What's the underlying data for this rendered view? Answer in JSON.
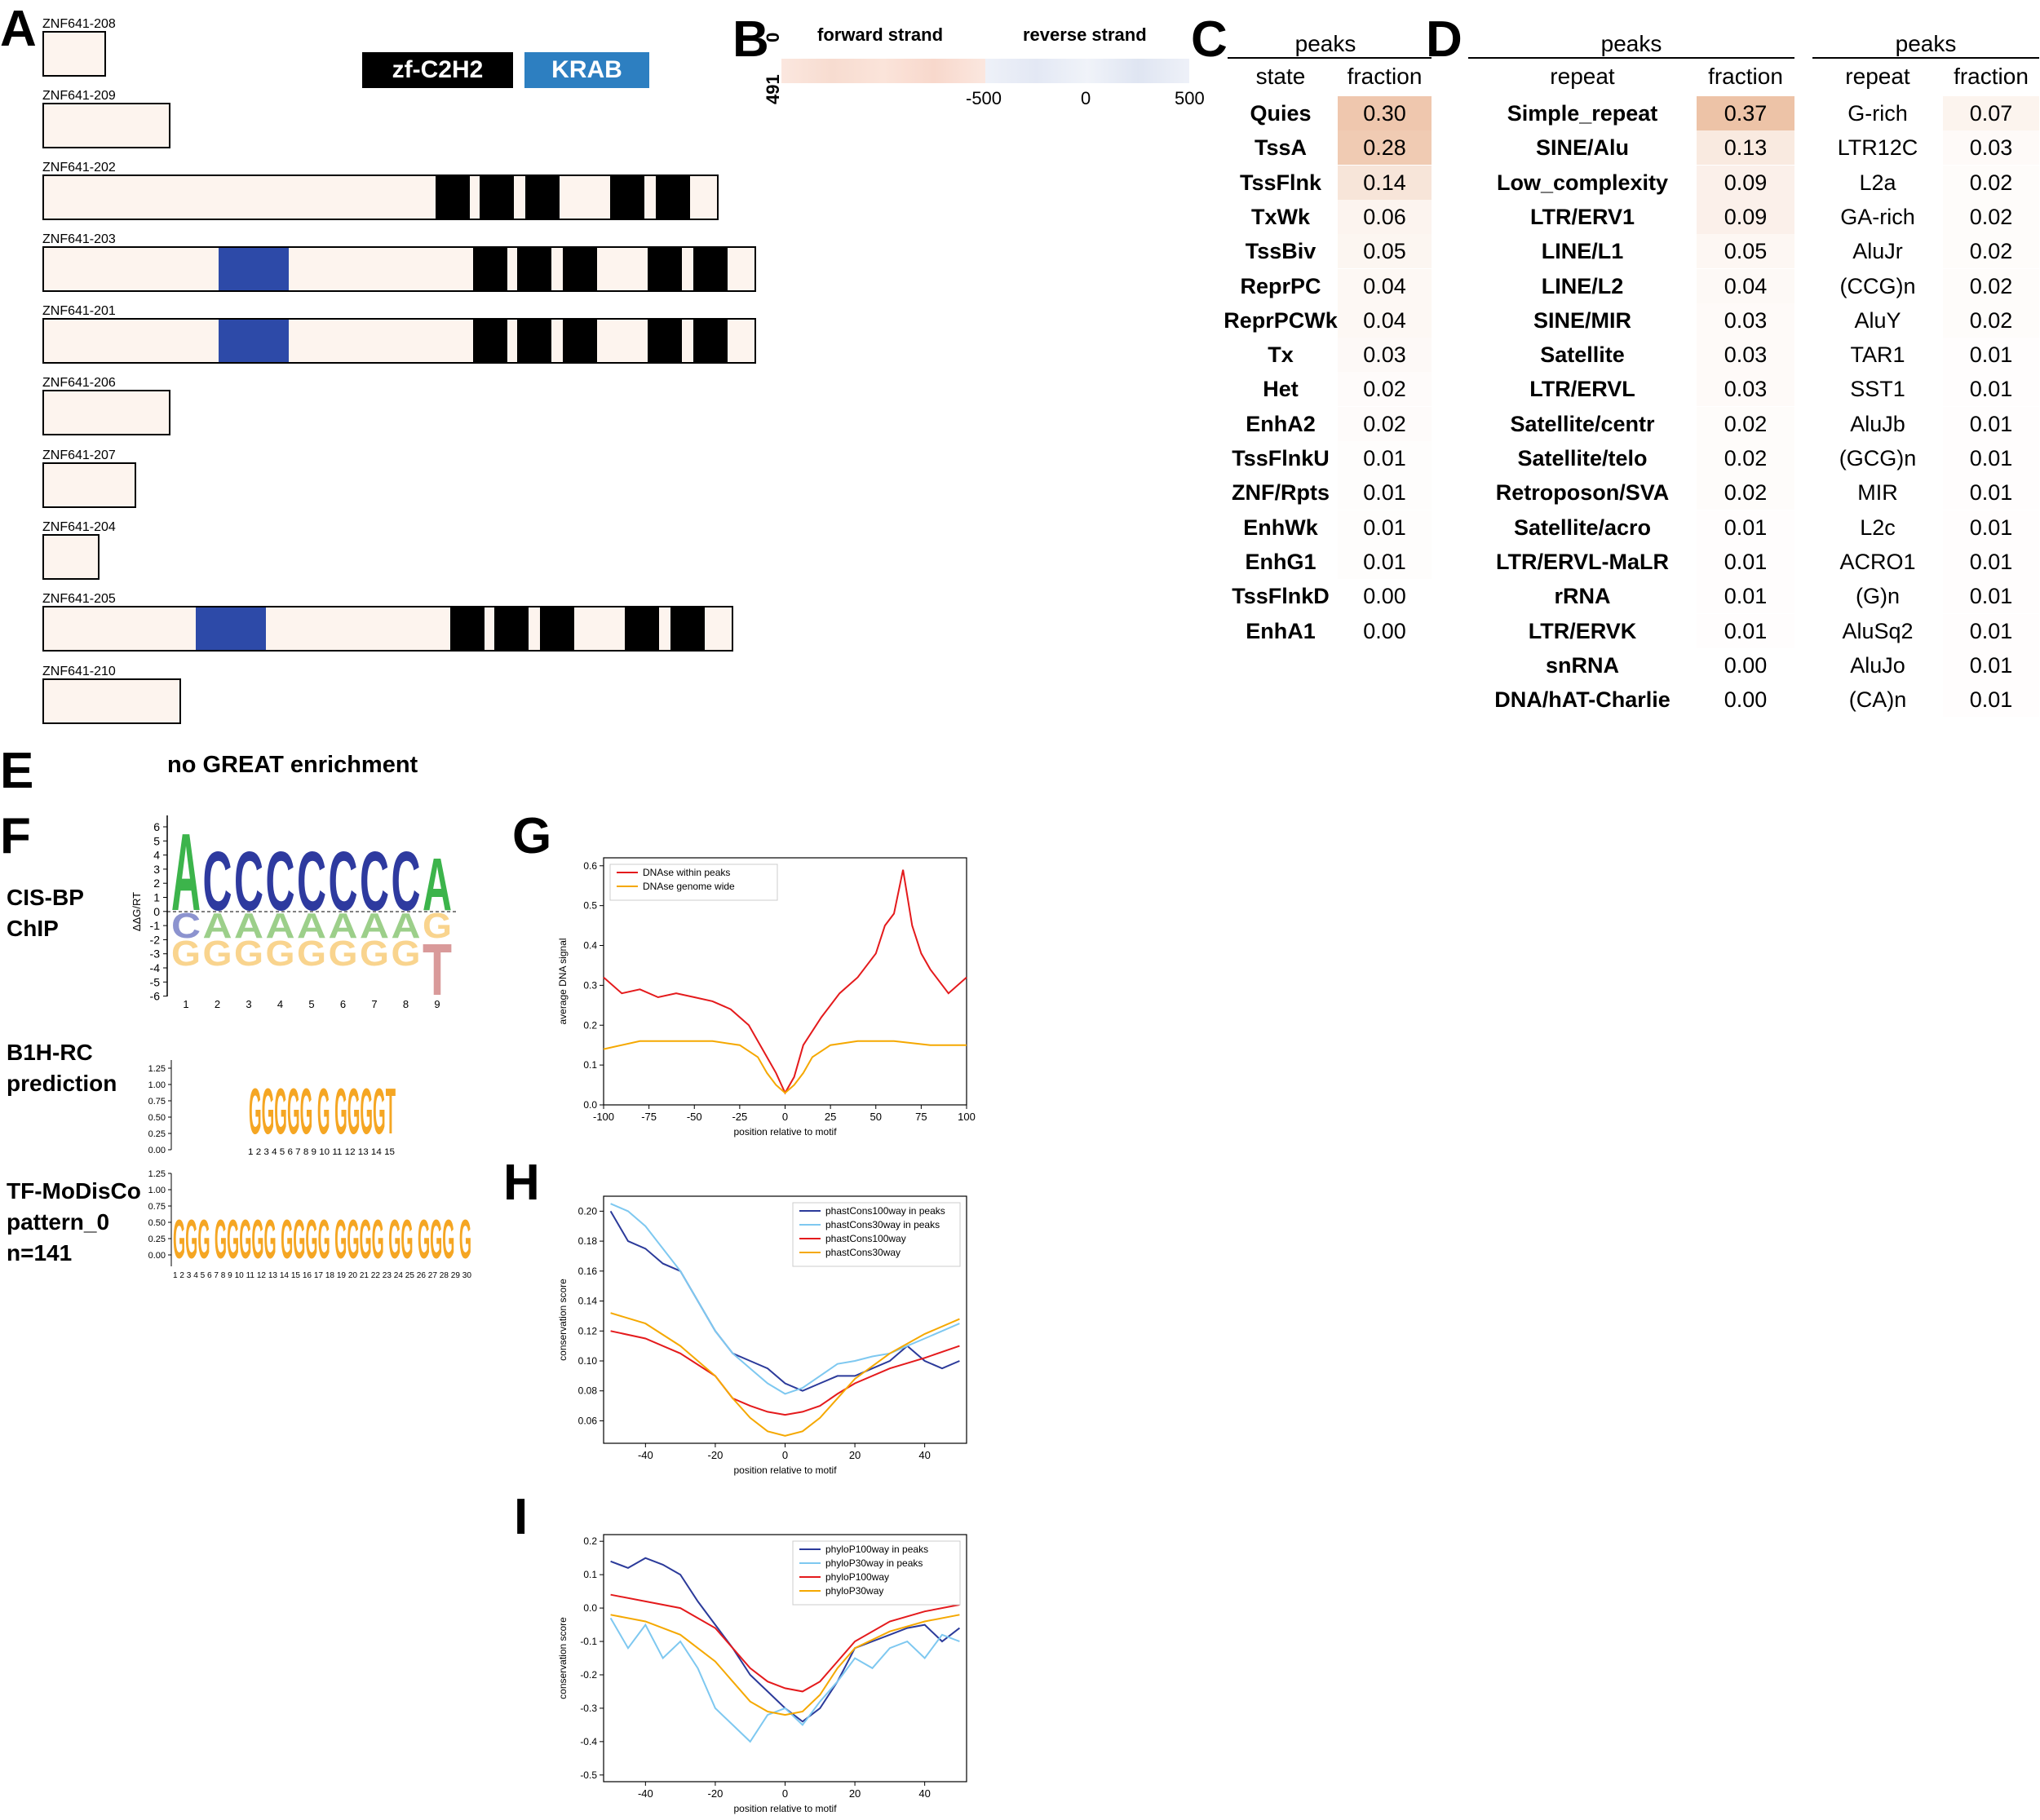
{
  "panels": {
    "A": "A",
    "B": "B",
    "C": "C",
    "D": "D",
    "E": "E",
    "F": "F",
    "G": "G",
    "H": "H",
    "I": "I"
  },
  "panelA": {
    "legend": {
      "zf": "zf-C2H2",
      "krab": "KRAB",
      "zf_color": "#000000",
      "krab_color": "#2d7fc1"
    },
    "isoforms": [
      {
        "name": "ZNF641-208"
      },
      {
        "name": "ZNF641-209"
      },
      {
        "name": "ZNF641-202"
      },
      {
        "name": "ZNF641-203"
      },
      {
        "name": "ZNF641-201"
      },
      {
        "name": "ZNF641-206"
      },
      {
        "name": "ZNF641-207"
      },
      {
        "name": "ZNF641-204"
      },
      {
        "name": "ZNF641-205"
      },
      {
        "name": "ZNF641-210"
      }
    ]
  },
  "panelB": {
    "forward": "forward strand",
    "reverse": "reverse strand",
    "y_top": "0",
    "y_bottom": "491",
    "ticks": [
      "-500",
      "0",
      "500"
    ]
  },
  "panelC": {
    "title": "peaks",
    "col1": "state",
    "col2": "fraction",
    "rows": [
      {
        "label": "Quies",
        "value": "0.30",
        "frac": 0.3
      },
      {
        "label": "TssA",
        "value": "0.28",
        "frac": 0.28
      },
      {
        "label": "TssFlnk",
        "value": "0.14",
        "frac": 0.14
      },
      {
        "label": "TxWk",
        "value": "0.06",
        "frac": 0.06
      },
      {
        "label": "TssBiv",
        "value": "0.05",
        "frac": 0.05
      },
      {
        "label": "ReprPC",
        "value": "0.04",
        "frac": 0.04
      },
      {
        "label": "ReprPCWk",
        "value": "0.04",
        "frac": 0.04
      },
      {
        "label": "Tx",
        "value": "0.03",
        "frac": 0.03
      },
      {
        "label": "Het",
        "value": "0.02",
        "frac": 0.02
      },
      {
        "label": "EnhA2",
        "value": "0.02",
        "frac": 0.02
      },
      {
        "label": "TssFlnkU",
        "value": "0.01",
        "frac": 0.01
      },
      {
        "label": "ZNF/Rpts",
        "value": "0.01",
        "frac": 0.01
      },
      {
        "label": "EnhWk",
        "value": "0.01",
        "frac": 0.01
      },
      {
        "label": "EnhG1",
        "value": "0.01",
        "frac": 0.01
      },
      {
        "label": "TssFlnkD",
        "value": "0.00",
        "frac": 0.0
      },
      {
        "label": "EnhA1",
        "value": "0.00",
        "frac": 0.0
      }
    ]
  },
  "panelD": {
    "title": "peaks",
    "col1": "repeat",
    "col2": "fraction",
    "rows": [
      {
        "label": "Simple_repeat",
        "value": "0.37",
        "frac": 0.37
      },
      {
        "label": "SINE/Alu",
        "value": "0.13",
        "frac": 0.13
      },
      {
        "label": "Low_complexity",
        "value": "0.09",
        "frac": 0.09
      },
      {
        "label": "LTR/ERV1",
        "value": "0.09",
        "frac": 0.09
      },
      {
        "label": "LINE/L1",
        "value": "0.05",
        "frac": 0.05
      },
      {
        "label": "LINE/L2",
        "value": "0.04",
        "frac": 0.04
      },
      {
        "label": "SINE/MIR",
        "value": "0.03",
        "frac": 0.03
      },
      {
        "label": "Satellite",
        "value": "0.03",
        "frac": 0.03
      },
      {
        "label": "LTR/ERVL",
        "value": "0.03",
        "frac": 0.03
      },
      {
        "label": "Satellite/centr",
        "value": "0.02",
        "frac": 0.02
      },
      {
        "label": "Satellite/telo",
        "value": "0.02",
        "frac": 0.02
      },
      {
        "label": "Retroposon/SVA",
        "value": "0.02",
        "frac": 0.02
      },
      {
        "label": "Satellite/acro",
        "value": "0.01",
        "frac": 0.01
      },
      {
        "label": "LTR/ERVL-MaLR",
        "value": "0.01",
        "frac": 0.01
      },
      {
        "label": "rRNA",
        "value": "0.01",
        "frac": 0.01
      },
      {
        "label": "LTR/ERVK",
        "value": "0.01",
        "frac": 0.01
      },
      {
        "label": "snRNA",
        "value": "0.00",
        "frac": 0.0
      },
      {
        "label": "DNA/hAT-Charlie",
        "value": "0.00",
        "frac": 0.0
      }
    ]
  },
  "panelD2": {
    "title": "peaks",
    "col1": "repeat",
    "col2": "fraction",
    "rows": [
      {
        "label": "G-rich",
        "value": "0.07",
        "frac": 0.07
      },
      {
        "label": "LTR12C",
        "value": "0.03",
        "frac": 0.03
      },
      {
        "label": "L2a",
        "value": "0.02",
        "frac": 0.02
      },
      {
        "label": "GA-rich",
        "value": "0.02",
        "frac": 0.02
      },
      {
        "label": "AluJr",
        "value": "0.02",
        "frac": 0.02
      },
      {
        "label": "(CCG)n",
        "value": "0.02",
        "frac": 0.02
      },
      {
        "label": "AluY",
        "value": "0.02",
        "frac": 0.02
      },
      {
        "label": "TAR1",
        "value": "0.01",
        "frac": 0.01
      },
      {
        "label": "SST1",
        "value": "0.01",
        "frac": 0.01
      },
      {
        "label": "AluJb",
        "value": "0.01",
        "frac": 0.01
      },
      {
        "label": "(GCG)n",
        "value": "0.01",
        "frac": 0.01
      },
      {
        "label": "MIR",
        "value": "0.01",
        "frac": 0.01
      },
      {
        "label": "L2c",
        "value": "0.01",
        "frac": 0.01
      },
      {
        "label": "ACRO1",
        "value": "0.01",
        "frac": 0.01
      },
      {
        "label": "(G)n",
        "value": "0.01",
        "frac": 0.01
      },
      {
        "label": "AluSq2",
        "value": "0.01",
        "frac": 0.01
      },
      {
        "label": "AluJo",
        "value": "0.01",
        "frac": 0.01
      },
      {
        "label": "(CA)n",
        "value": "0.01",
        "frac": 0.01
      }
    ]
  },
  "panelE": {
    "text": "no GREAT enrichment"
  },
  "panelF": {
    "cisbp_label": "CIS-BP\nChIP",
    "b1h_label": "B1H-RC\nprediction",
    "modisco_label": "TF-MoDisCo\npattern_0\nn=141",
    "cisbp_ylabel": "ΔΔG/RT",
    "cisbp_yticks": [
      "6",
      "5",
      "4",
      "3",
      "2",
      "1",
      "0",
      "-1",
      "-2",
      "-3",
      "-4",
      "-5",
      "-6"
    ],
    "cisbp_xticks": [
      "1",
      "2",
      "3",
      "4",
      "5",
      "6",
      "7",
      "8",
      "9"
    ],
    "cisbp_top": [
      "A",
      "C",
      "C",
      "C",
      "C",
      "C",
      "C",
      "C",
      "A"
    ],
    "cisbp_mid": [
      "C",
      "A",
      "A",
      "A",
      "A",
      "A",
      "A",
      "A",
      "G"
    ],
    "cisbp_low": [
      "G",
      "G",
      "G",
      "G",
      "G",
      "G",
      "G",
      "G",
      "T"
    ],
    "logo_yticks": [
      "1.25",
      "1.00",
      "0.75",
      "0.50",
      "0.25",
      "0.00"
    ],
    "b1h_xticks": "1 2 3 4 5 6 7 8 9 10 11 12 13 14 15",
    "b1h_seq": "GGGGG G GGGGT",
    "modisco_xticks": "1 2 3 4 5 6 7 8 9 10 11 12 13 14 15 16 17 18 19 20 21 22 23 24 25 26 27 28 29 30",
    "modisco_seq": "GGG GGGGG GGGG GGGG GG GGG G"
  },
  "chart_data": [
    {
      "type": "line",
      "panel": "G",
      "xlabel": "position relative to motif",
      "ylabel": "average DNA signal",
      "xlim": [
        -100,
        100
      ],
      "ylim": [
        0,
        0.62
      ],
      "xticks": [
        "-100",
        "-75",
        "-50",
        "-25",
        "0",
        "25",
        "50",
        "75",
        "100"
      ],
      "yticks": [
        "0.0",
        "0.1",
        "0.2",
        "0.3",
        "0.4",
        "0.5",
        "0.6"
      ],
      "legend_position": "top-left",
      "series": [
        {
          "name": "DNAse within peaks",
          "color": "#e41a1c",
          "x": [
            -100,
            -90,
            -80,
            -70,
            -60,
            -50,
            -40,
            -30,
            -20,
            -10,
            -5,
            0,
            5,
            10,
            20,
            30,
            40,
            50,
            55,
            60,
            65,
            70,
            75,
            80,
            90,
            100
          ],
          "y": [
            0.32,
            0.28,
            0.29,
            0.27,
            0.28,
            0.27,
            0.26,
            0.24,
            0.2,
            0.12,
            0.08,
            0.03,
            0.07,
            0.15,
            0.22,
            0.28,
            0.32,
            0.38,
            0.45,
            0.48,
            0.59,
            0.45,
            0.38,
            0.34,
            0.28,
            0.32
          ]
        },
        {
          "name": "DNAse genome wide",
          "color": "#f5a800",
          "x": [
            -100,
            -80,
            -60,
            -40,
            -25,
            -15,
            -10,
            -5,
            0,
            5,
            10,
            15,
            25,
            40,
            60,
            80,
            100
          ],
          "y": [
            0.14,
            0.16,
            0.16,
            0.16,
            0.15,
            0.12,
            0.08,
            0.05,
            0.03,
            0.05,
            0.08,
            0.12,
            0.15,
            0.16,
            0.16,
            0.15,
            0.15
          ]
        }
      ]
    },
    {
      "type": "line",
      "panel": "H",
      "xlabel": "position relative to motif",
      "ylabel": "conservation score",
      "xlim": [
        -52,
        52
      ],
      "ylim": [
        0.045,
        0.21
      ],
      "xticks": [
        "-40",
        "-20",
        "0",
        "20",
        "40"
      ],
      "yticks": [
        "0.06",
        "0.08",
        "0.10",
        "0.12",
        "0.14",
        "0.16",
        "0.18",
        "0.20"
      ],
      "legend_position": "top-right",
      "series": [
        {
          "name": "phastCons100way in peaks",
          "color": "#2b3a9a",
          "x": [
            -50,
            -45,
            -40,
            -35,
            -30,
            -25,
            -20,
            -15,
            -10,
            -5,
            0,
            5,
            10,
            15,
            20,
            25,
            30,
            35,
            40,
            45,
            50
          ],
          "y": [
            0.2,
            0.18,
            0.175,
            0.165,
            0.16,
            0.14,
            0.12,
            0.105,
            0.1,
            0.095,
            0.085,
            0.08,
            0.085,
            0.09,
            0.09,
            0.095,
            0.1,
            0.11,
            0.1,
            0.095,
            0.1
          ]
        },
        {
          "name": "phastCons30way in peaks",
          "color": "#7ec8f0",
          "x": [
            -50,
            -45,
            -40,
            -35,
            -30,
            -25,
            -20,
            -15,
            -10,
            -5,
            0,
            5,
            10,
            15,
            20,
            25,
            30,
            35,
            40,
            45,
            50
          ],
          "y": [
            0.205,
            0.2,
            0.19,
            0.175,
            0.16,
            0.14,
            0.12,
            0.105,
            0.095,
            0.085,
            0.078,
            0.082,
            0.09,
            0.098,
            0.1,
            0.103,
            0.105,
            0.11,
            0.115,
            0.12,
            0.125
          ]
        },
        {
          "name": "phastCons100way",
          "color": "#e41a1c",
          "x": [
            -50,
            -40,
            -30,
            -20,
            -15,
            -10,
            -5,
            0,
            5,
            10,
            15,
            20,
            30,
            40,
            50
          ],
          "y": [
            0.12,
            0.115,
            0.105,
            0.09,
            0.075,
            0.07,
            0.066,
            0.064,
            0.066,
            0.07,
            0.078,
            0.085,
            0.095,
            0.102,
            0.11
          ]
        },
        {
          "name": "phastCons30way",
          "color": "#f5a800",
          "x": [
            -50,
            -40,
            -30,
            -20,
            -15,
            -10,
            -5,
            0,
            5,
            10,
            15,
            20,
            30,
            40,
            50
          ],
          "y": [
            0.132,
            0.125,
            0.11,
            0.09,
            0.075,
            0.062,
            0.053,
            0.05,
            0.053,
            0.062,
            0.075,
            0.088,
            0.105,
            0.118,
            0.128
          ]
        }
      ]
    },
    {
      "type": "line",
      "panel": "I",
      "xlabel": "position relative to motif",
      "ylabel": "conservation score",
      "xlim": [
        -52,
        52
      ],
      "ylim": [
        -0.52,
        0.22
      ],
      "xticks": [
        "-40",
        "-20",
        "0",
        "20",
        "40"
      ],
      "yticks": [
        "0.2",
        "0.1",
        "0.0",
        "-0.1",
        "-0.2",
        "-0.3",
        "-0.4",
        "-0.5"
      ],
      "legend_position": "top-right",
      "series": [
        {
          "name": "phyloP100way in peaks",
          "color": "#2b3a9a",
          "x": [
            -50,
            -45,
            -40,
            -35,
            -30,
            -25,
            -20,
            -15,
            -10,
            -5,
            0,
            5,
            10,
            15,
            20,
            25,
            30,
            35,
            40,
            45,
            50
          ],
          "y": [
            0.14,
            0.12,
            0.15,
            0.13,
            0.1,
            0.02,
            -0.05,
            -0.12,
            -0.2,
            -0.25,
            -0.3,
            -0.34,
            -0.3,
            -0.22,
            -0.12,
            -0.1,
            -0.08,
            -0.06,
            -0.05,
            -0.1,
            -0.06
          ]
        },
        {
          "name": "phyloP30way in peaks",
          "color": "#7ec8f0",
          "x": [
            -50,
            -45,
            -40,
            -35,
            -30,
            -25,
            -20,
            -15,
            -10,
            -5,
            0,
            5,
            10,
            15,
            20,
            25,
            30,
            35,
            40,
            45,
            50
          ],
          "y": [
            -0.03,
            -0.12,
            -0.05,
            -0.15,
            -0.1,
            -0.18,
            -0.3,
            -0.35,
            -0.4,
            -0.32,
            -0.3,
            -0.35,
            -0.28,
            -0.22,
            -0.15,
            -0.18,
            -0.12,
            -0.1,
            -0.15,
            -0.08,
            -0.1
          ]
        },
        {
          "name": "phyloP100way",
          "color": "#e41a1c",
          "x": [
            -50,
            -40,
            -30,
            -20,
            -15,
            -10,
            -5,
            0,
            5,
            10,
            15,
            20,
            30,
            40,
            50
          ],
          "y": [
            0.04,
            0.02,
            0.0,
            -0.06,
            -0.12,
            -0.18,
            -0.22,
            -0.24,
            -0.25,
            -0.22,
            -0.16,
            -0.1,
            -0.04,
            -0.01,
            0.01
          ]
        },
        {
          "name": "phyloP30way",
          "color": "#f5a800",
          "x": [
            -50,
            -40,
            -30,
            -20,
            -15,
            -10,
            -5,
            0,
            5,
            10,
            15,
            20,
            30,
            40,
            50
          ],
          "y": [
            -0.02,
            -0.04,
            -0.08,
            -0.16,
            -0.22,
            -0.28,
            -0.31,
            -0.32,
            -0.31,
            -0.26,
            -0.18,
            -0.12,
            -0.07,
            -0.04,
            -0.02
          ]
        }
      ]
    }
  ]
}
